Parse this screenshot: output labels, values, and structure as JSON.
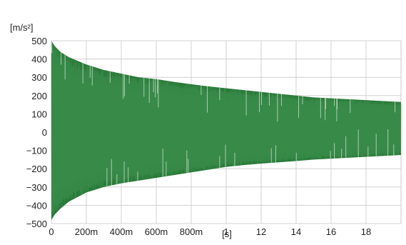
{
  "chart_data": {
    "type": "area",
    "title": "",
    "ylabel": "[m/s²]",
    "xlabel": "[s]",
    "y_ticks": [
      "500",
      "400",
      "300",
      "200",
      "100",
      "0",
      "−100",
      "−200",
      "−300",
      "−400",
      "−500"
    ],
    "x_ticks": [
      "0",
      "200m",
      "400m",
      "600m",
      "800m",
      "1",
      "12",
      "14",
      "16",
      "18"
    ],
    "ylim": [
      -500,
      500
    ],
    "x_positions": [
      0,
      0.2,
      0.4,
      0.6,
      0.8,
      1.0,
      1.2,
      1.4,
      1.6,
      1.8
    ],
    "xlim": [
      0,
      2.0
    ],
    "grid": true,
    "series": [
      {
        "color": "#2a7a3a",
        "envelope": {
          "x": [
            0,
            0.02,
            0.05,
            0.1,
            0.2,
            0.3,
            0.4,
            0.5,
            0.6,
            0.7,
            0.8,
            0.9,
            1.0,
            1.1,
            1.2,
            1.3,
            1.4,
            1.5,
            1.6,
            1.7,
            1.8,
            1.9,
            2.0
          ],
          "upper": [
            500,
            470,
            440,
            410,
            370,
            340,
            320,
            300,
            290,
            275,
            262,
            250,
            240,
            230,
            220,
            210,
            200,
            190,
            185,
            180,
            175,
            170,
            165
          ],
          "lower": [
            -480,
            -450,
            -420,
            -380,
            -330,
            -300,
            -280,
            -265,
            -250,
            -235,
            -220,
            -205,
            -190,
            -180,
            -172,
            -165,
            -158,
            -150,
            -145,
            -140,
            -135,
            -130,
            -125
          ]
        }
      }
    ]
  }
}
